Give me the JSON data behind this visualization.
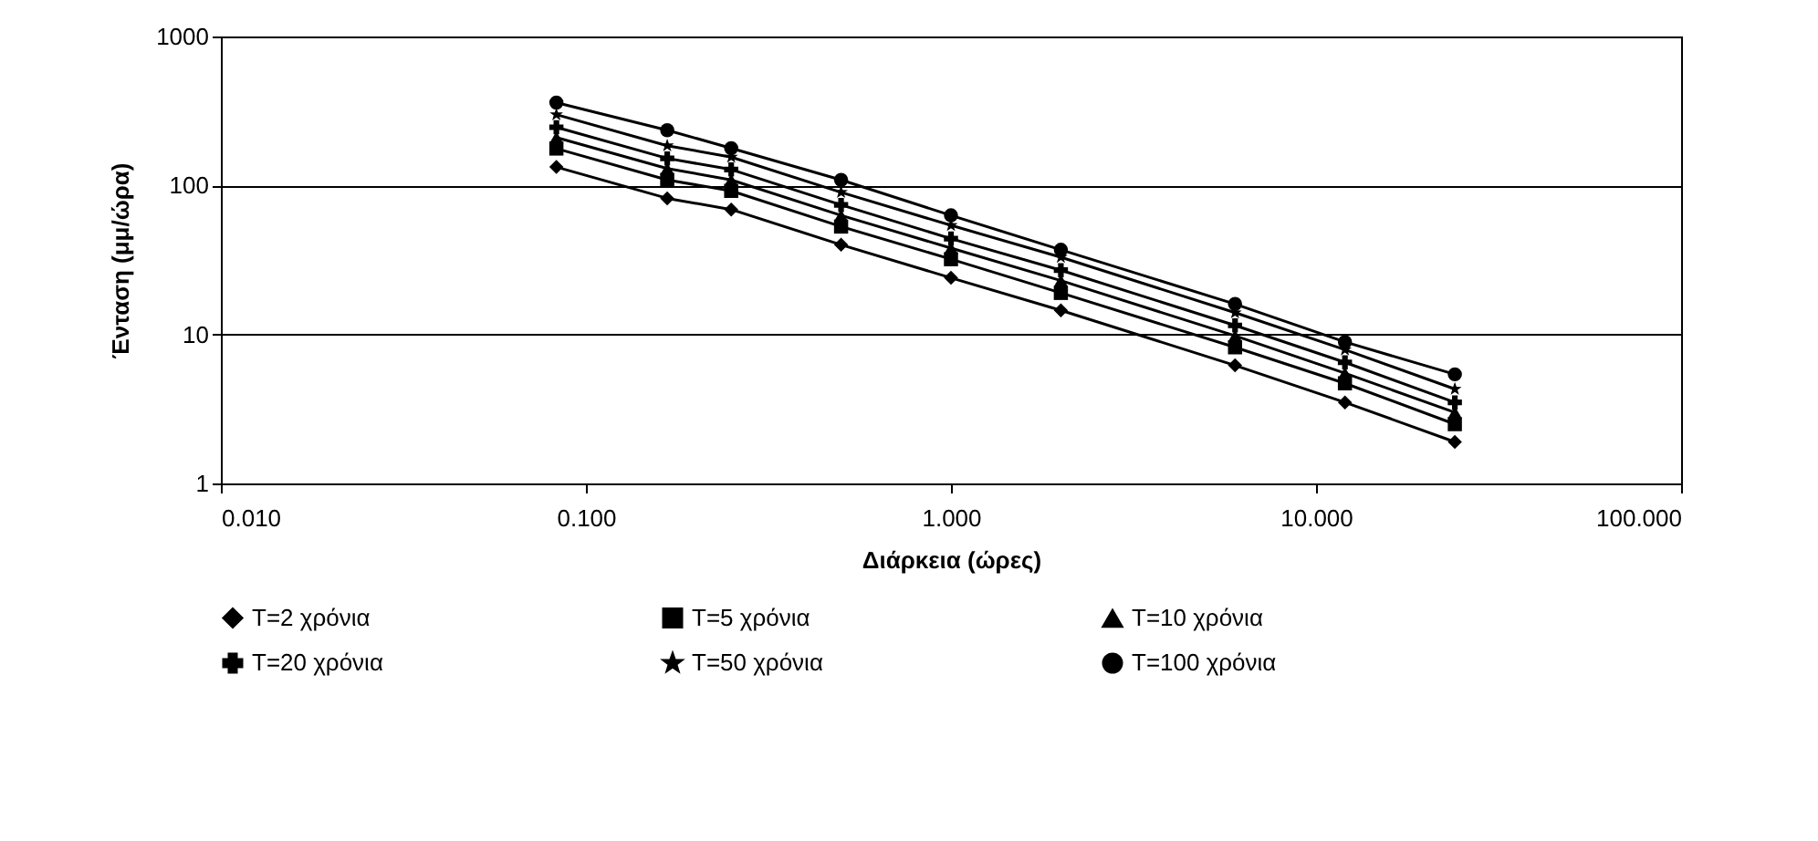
{
  "chart_data": {
    "type": "line",
    "xlabel": "Διάρκεια (ώρες)",
    "ylabel": "Ένταση (μμ/ώρα)",
    "x": [
      0.083,
      0.167,
      0.25,
      0.5,
      1,
      2,
      6,
      12,
      24
    ],
    "series": [
      {
        "name": "T=2 χρόνια",
        "color": "#000000",
        "marker": "diamond",
        "values": [
          133,
          82,
          69,
          40,
          24,
          14.5,
          6.2,
          3.5,
          1.9
        ]
      },
      {
        "name": "T=5 χρόνια",
        "color": "#000000",
        "marker": "square",
        "values": [
          177,
          109,
          92,
          53,
          32,
          19,
          8.2,
          4.7,
          2.5
        ]
      },
      {
        "name": "T=10 χρόνια",
        "color": "#000000",
        "marker": "triangle",
        "values": [
          210,
          130,
          109,
          63,
          38,
          23,
          9.8,
          5.5,
          3.0
        ]
      },
      {
        "name": "T=20 χρόνια",
        "color": "#000000",
        "marker": "cross",
        "values": [
          246,
          152,
          128,
          74,
          44,
          27,
          11.5,
          6.5,
          3.5
        ]
      },
      {
        "name": "T=50 χρόνια",
        "color": "#000000",
        "marker": "star",
        "values": [
          299,
          185,
          155,
          90,
          54,
          33,
          14,
          7.9,
          4.3
        ]
      },
      {
        "name": "T=100 χρόνια",
        "color": "#000000",
        "marker": "circle",
        "values": [
          360,
          235,
          178,
          109,
          63,
          37,
          16,
          8.9,
          5.4
        ]
      }
    ],
    "log": "xy",
    "xlim": [
      0.01,
      100
    ],
    "ylim": [
      1,
      1000
    ],
    "xticks": [
      {
        "value": 0.01,
        "label": "0.010"
      },
      {
        "value": 0.1,
        "label": "0.100"
      },
      {
        "value": 1,
        "label": "1.000"
      },
      {
        "value": 10,
        "label": "10.000"
      },
      {
        "value": 100,
        "label": "100.000"
      }
    ],
    "yticks": [
      1,
      10,
      100,
      1000
    ],
    "grid": "y",
    "legend": "bottom",
    "line_style": "solid"
  }
}
